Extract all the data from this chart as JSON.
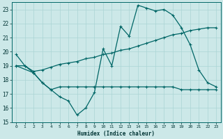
{
  "xlabel": "Humidex (Indice chaleur)",
  "bg_color": "#cce8e8",
  "grid_color": "#aad4d4",
  "line_color": "#006666",
  "xlim": [
    -0.5,
    23.5
  ],
  "ylim": [
    15,
    23.5
  ],
  "yticks": [
    15,
    16,
    17,
    18,
    19,
    20,
    21,
    22,
    23
  ],
  "xticks": [
    0,
    1,
    2,
    3,
    4,
    5,
    6,
    7,
    8,
    9,
    10,
    11,
    12,
    13,
    14,
    15,
    16,
    17,
    18,
    19,
    20,
    21,
    22,
    23
  ],
  "line1_x": [
    0,
    1,
    2,
    3,
    4,
    5,
    6,
    7,
    8,
    9,
    10,
    11,
    12,
    13,
    14,
    15,
    16,
    17,
    18,
    19,
    20,
    21,
    22,
    23
  ],
  "line1_y": [
    19.8,
    19.0,
    18.5,
    17.8,
    17.3,
    16.8,
    16.5,
    15.5,
    16.0,
    17.1,
    20.2,
    19.0,
    21.8,
    21.1,
    23.3,
    23.1,
    22.9,
    23.0,
    22.6,
    21.7,
    20.5,
    18.7,
    17.8,
    17.5
  ],
  "line2_x": [
    0,
    1,
    2,
    3,
    4,
    5,
    6,
    7,
    8,
    9,
    10,
    11,
    12,
    13,
    14,
    15,
    16,
    17,
    18,
    19,
    20,
    21,
    22,
    23
  ],
  "line2_y": [
    19.0,
    19.0,
    18.6,
    18.7,
    18.9,
    19.1,
    19.2,
    19.3,
    19.5,
    19.6,
    19.8,
    19.9,
    20.1,
    20.2,
    20.4,
    20.6,
    20.8,
    21.0,
    21.2,
    21.3,
    21.5,
    21.6,
    21.7,
    21.7
  ],
  "line3_x": [
    0,
    2,
    3,
    4,
    5,
    6,
    7,
    8,
    9,
    10,
    11,
    12,
    13,
    14,
    15,
    16,
    17,
    18,
    19,
    20,
    21,
    22,
    23
  ],
  "line3_y": [
    19.0,
    18.5,
    17.8,
    17.3,
    17.5,
    17.5,
    17.5,
    17.5,
    17.5,
    17.5,
    17.5,
    17.5,
    17.5,
    17.5,
    17.5,
    17.5,
    17.5,
    17.5,
    17.3,
    17.3,
    17.3,
    17.3,
    17.3
  ]
}
